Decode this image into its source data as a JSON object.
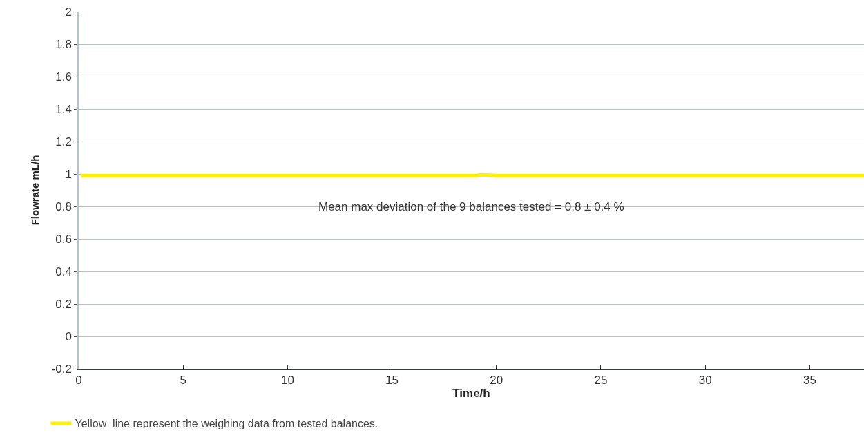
{
  "chart_data": {
    "type": "line",
    "xlabel": "Time/h",
    "ylabel": "Flowrate mL/h",
    "x": [
      0.1,
      1,
      2,
      3,
      4,
      5,
      6,
      7,
      8,
      9,
      10,
      11,
      12,
      13,
      14,
      15,
      16,
      17,
      18,
      19,
      19.3,
      20,
      21,
      22,
      23,
      24,
      25,
      26,
      27,
      28,
      29,
      30,
      31,
      32,
      33,
      34,
      35,
      36,
      37,
      37.6
    ],
    "series": [
      {
        "name": "Yellow  line represent the weighing data from tested balances.",
        "color": "#fff200",
        "values": [
          0.99,
          0.99,
          0.99,
          0.99,
          0.99,
          0.99,
          0.99,
          0.99,
          0.99,
          0.99,
          0.99,
          0.99,
          0.99,
          0.99,
          0.99,
          0.99,
          0.99,
          0.99,
          0.99,
          0.99,
          0.995,
          0.99,
          0.99,
          0.99,
          0.99,
          0.99,
          0.99,
          0.99,
          0.99,
          0.99,
          0.99,
          0.99,
          0.99,
          0.99,
          0.99,
          0.99,
          0.99,
          0.99,
          0.99,
          0.99
        ]
      }
    ],
    "annotations": [
      "Mean max deviation of the 9 balances tested = 0.8 ± 0.4 %"
    ],
    "xlim": [
      0,
      37.6
    ],
    "xticks": [
      0,
      5,
      10,
      15,
      20,
      25,
      30,
      35
    ],
    "ylim": [
      -0.2,
      2
    ],
    "yticks": [
      -0.2,
      0,
      0.2,
      0.4,
      0.6,
      0.8,
      1,
      1.2,
      1.4,
      1.6,
      1.8,
      2
    ],
    "grid": "y",
    "legend": "bottom left",
    "marker": "none",
    "line_style": "solid"
  }
}
